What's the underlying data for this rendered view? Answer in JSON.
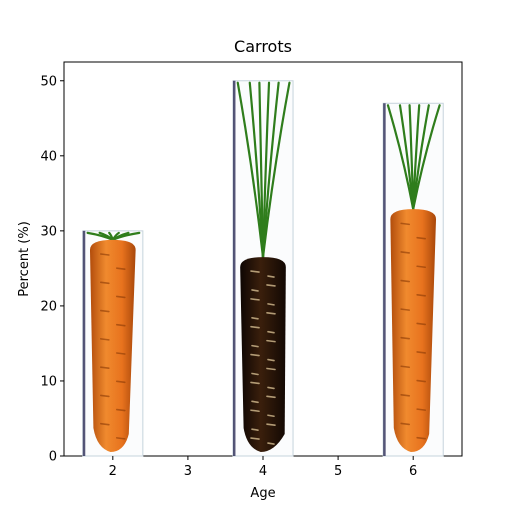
{
  "chart_data": {
    "type": "bar",
    "title": "Carrots",
    "xlabel": "Age",
    "ylabel": "Percent (%)",
    "x": [
      2,
      4,
      6
    ],
    "values": [
      30,
      50,
      47
    ],
    "xlim": [
      1.35,
      6.65
    ],
    "ylim": [
      0,
      52.5
    ],
    "xticks": [
      2,
      3,
      4,
      5,
      6
    ],
    "yticks": [
      0,
      10,
      20,
      30,
      40,
      50
    ],
    "bar_width": 0.8,
    "bar_fill": "carrot-pictogram",
    "bar_colors": [
      "#e8731e",
      "#2a1508",
      "#e8731e"
    ],
    "leaf_color": "#2f7d1c",
    "grid": false
  }
}
